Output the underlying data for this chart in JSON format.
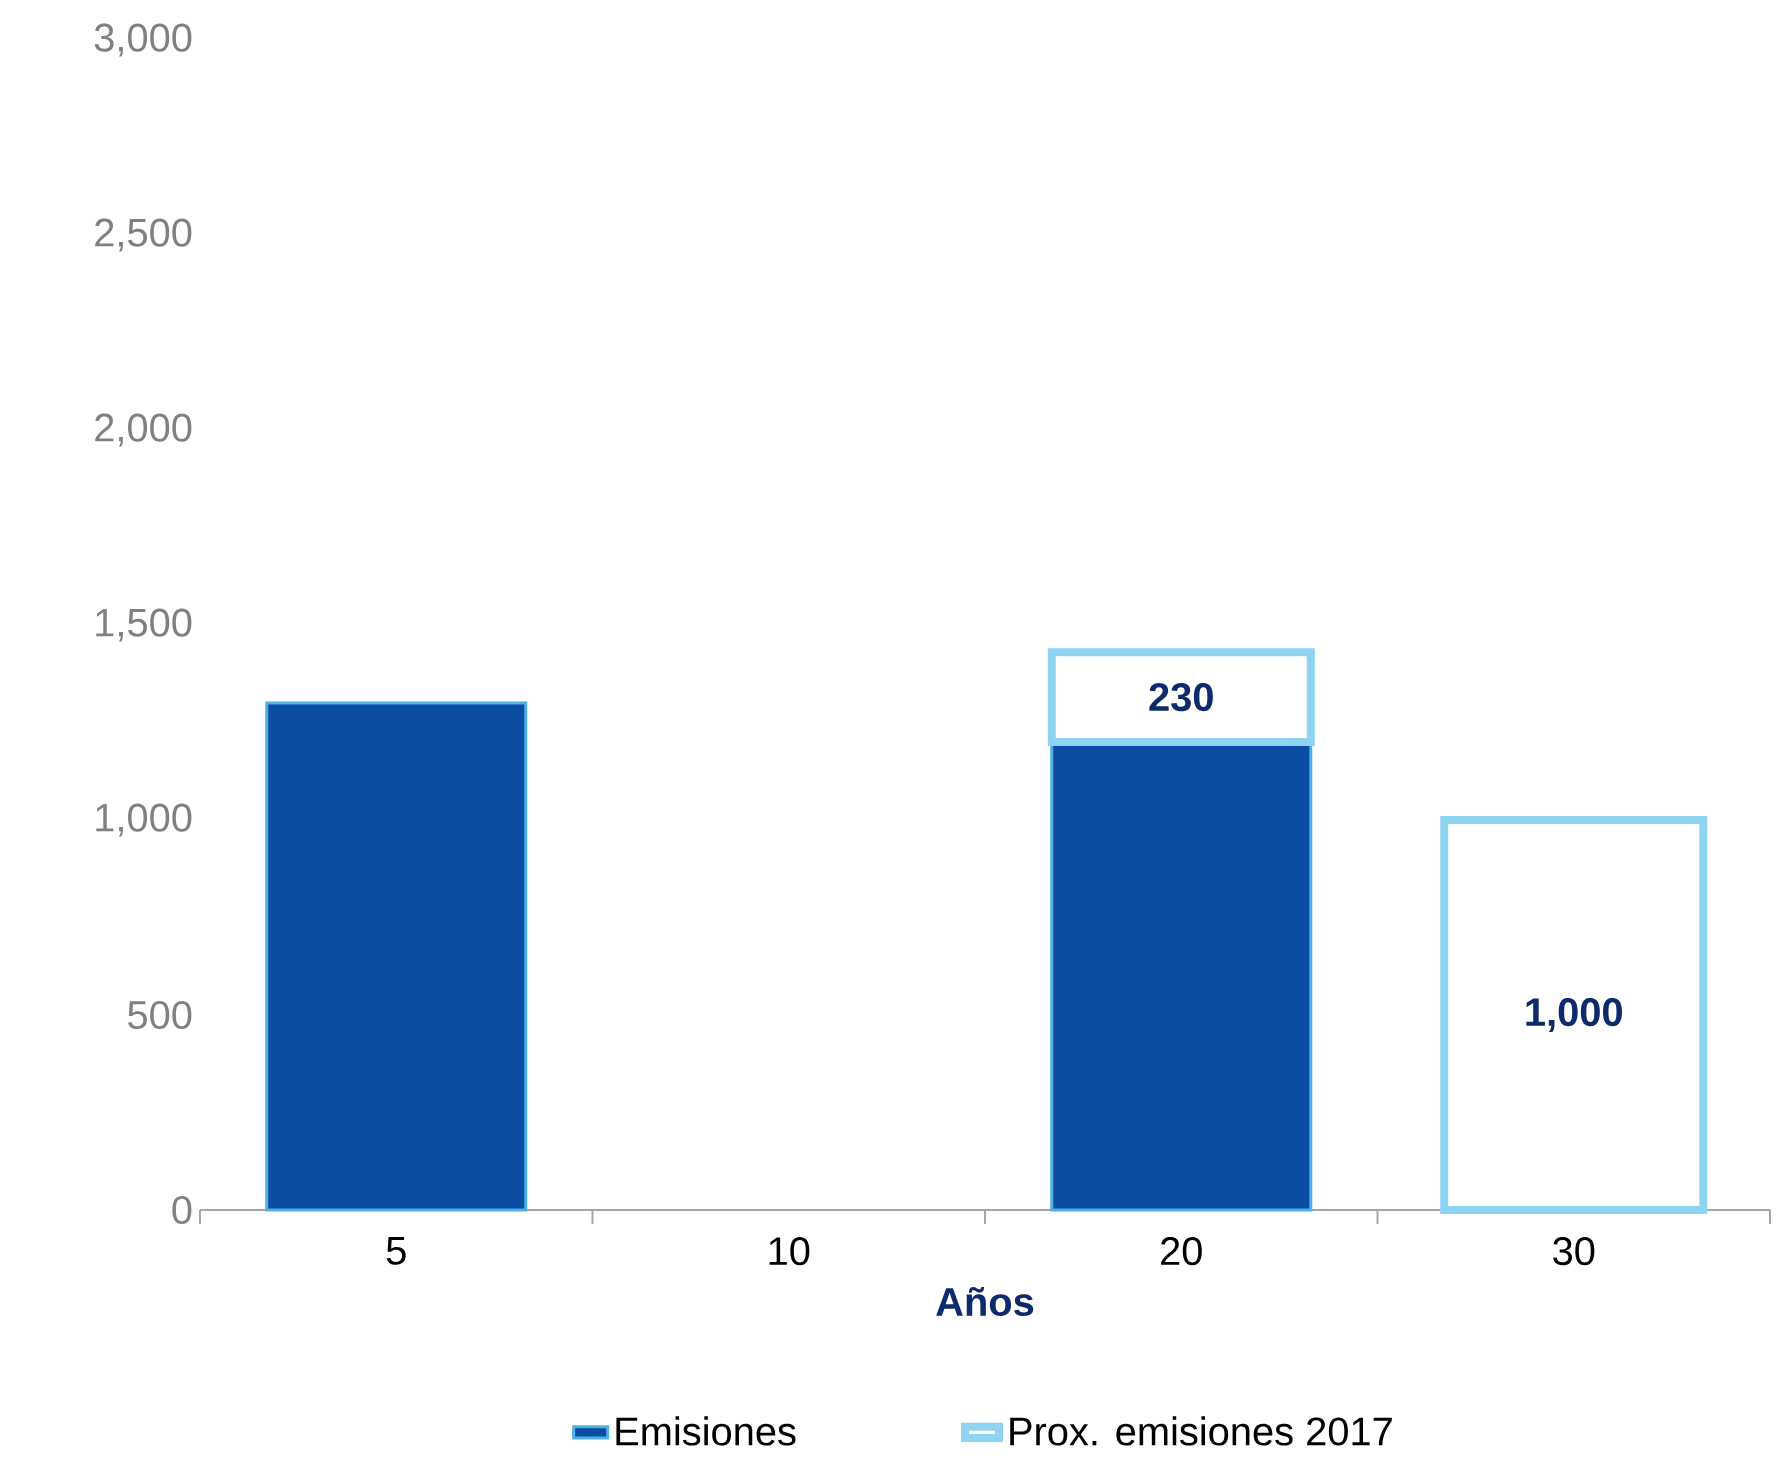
{
  "chart_data": {
    "type": "bar",
    "stacked": true,
    "xlabel": "Años",
    "categories": [
      "5",
      "10",
      "20",
      "30"
    ],
    "series": [
      {
        "name": "Emisiones",
        "color": "#0b4da2",
        "values": [
          1300,
          null,
          1200,
          null
        ]
      },
      {
        "name": "Prox. emisiones 2017",
        "color": "#8fd3f2",
        "values": [
          null,
          null,
          230,
          1000
        ],
        "value_labels": [
          null,
          null,
          "230",
          "1,000"
        ]
      }
    ],
    "ylim": [
      0,
      3000
    ],
    "yticks": [
      0,
      500,
      {
        "value": 1000,
        "label": "1,000"
      },
      {
        "value": 1500,
        "label": "1,500"
      },
      {
        "value": 2000,
        "label": "2,000"
      },
      {
        "value": 2500,
        "label": "2,500"
      },
      {
        "value": 3000,
        "label": "3,000"
      }
    ],
    "grid": false,
    "legend": "bottom"
  }
}
